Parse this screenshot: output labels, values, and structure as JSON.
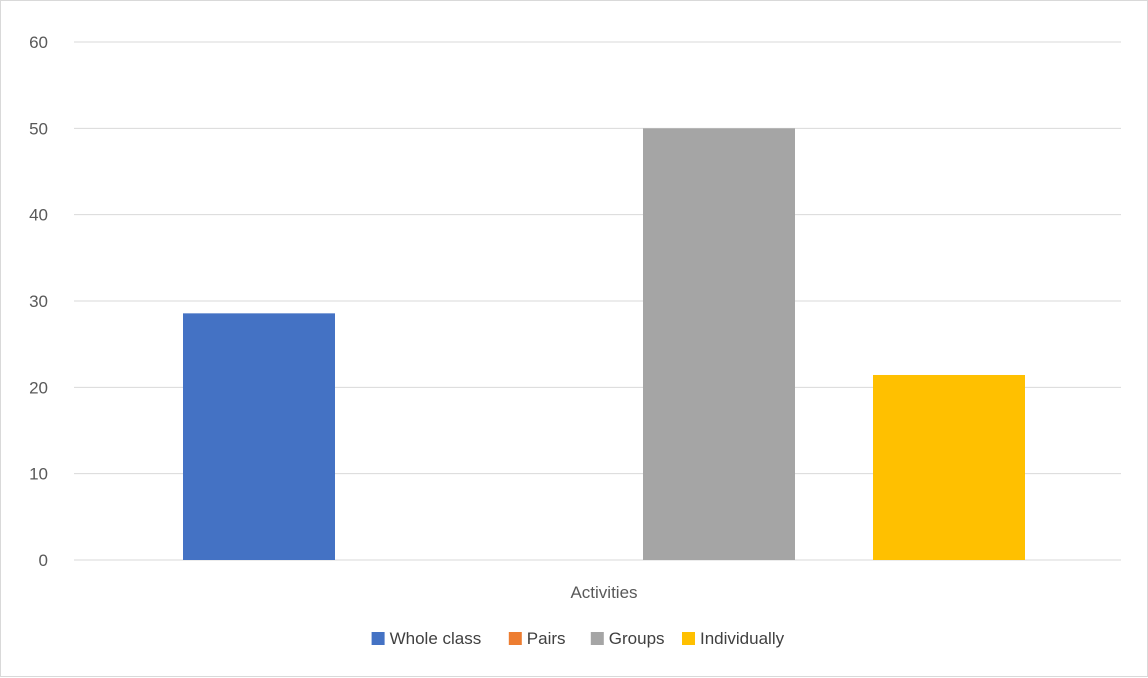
{
  "chart_data": {
    "type": "bar",
    "categories": [
      "Activities"
    ],
    "series": [
      {
        "name": "Whole class",
        "values": [
          28.57
        ],
        "color": "#4472C4"
      },
      {
        "name": "Pairs",
        "values": [
          0
        ],
        "color": "#ED7D31"
      },
      {
        "name": "Groups",
        "values": [
          50
        ],
        "color": "#A5A5A5"
      },
      {
        "name": "Individually",
        "values": [
          21.43
        ],
        "color": "#FFC000"
      }
    ],
    "yticks": [
      0,
      10,
      20,
      30,
      40,
      50,
      60
    ],
    "ylim": [
      0,
      60
    ],
    "grid": true,
    "legend_position": "bottom"
  }
}
